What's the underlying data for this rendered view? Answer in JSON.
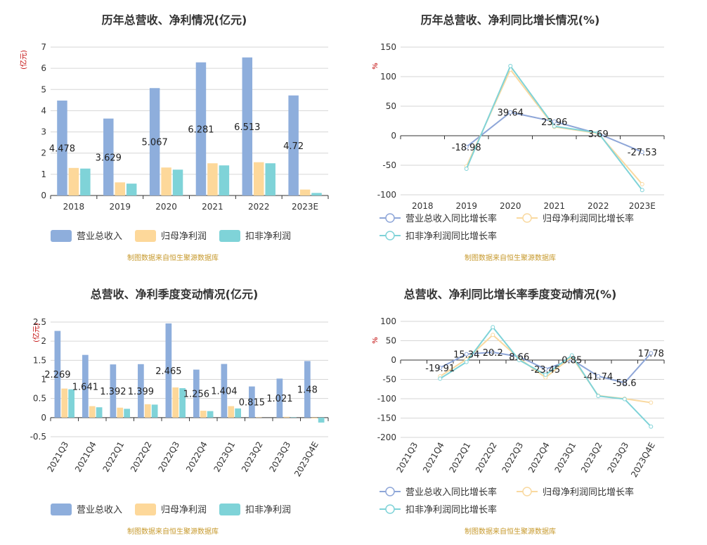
{
  "colors": {
    "revenue": "#8eaedc",
    "parent_profit": "#fdd89a",
    "deducted_profit": "#7fd3d8",
    "revenue_line": "#8ea6d8",
    "parent_line": "#f9d9a0",
    "deducted_line": "#7fd3d8",
    "unit": "#c00000",
    "source": "#c79a2e"
  },
  "source_note": "制图数据来自恒生聚源数据库",
  "chart_data": [
    {
      "type": "bar",
      "title": "历年总营收、净利情况(亿元)",
      "ylabel": "(亿元)",
      "ylim": [
        0,
        7
      ],
      "yticks": [
        "0",
        "1",
        "2",
        "3",
        "4",
        "5",
        "6",
        "7"
      ],
      "grid": true,
      "legend_position": "bottom",
      "categories": [
        "2018",
        "2019",
        "2020",
        "2021",
        "2022",
        "2023E"
      ],
      "series": [
        {
          "name": "营业总收入",
          "values": [
            4.478,
            3.629,
            5.067,
            6.281,
            6.513,
            4.72
          ]
        },
        {
          "name": "归母净利润",
          "values": [
            1.3,
            0.62,
            1.32,
            1.52,
            1.57,
            0.28
          ]
        },
        {
          "name": "扣非净利润",
          "values": [
            1.27,
            0.56,
            1.22,
            1.42,
            1.52,
            0.12
          ]
        }
      ],
      "data_labels": [
        "4.478",
        "3.629",
        "5.067",
        "6.281",
        "6.513",
        "4.72"
      ]
    },
    {
      "type": "line",
      "title": "历年总营收、净利同比增长情况(%)",
      "ylabel": "%",
      "ylim": [
        -100,
        150
      ],
      "yticks": [
        "-100",
        "-50",
        "0",
        "50",
        "100",
        "150"
      ],
      "grid": true,
      "legend_position": "bottom",
      "categories": [
        "2018",
        "2019",
        "2020",
        "2021",
        "2022",
        "2023E"
      ],
      "series": [
        {
          "name": "营业总收入同比增长率",
          "values": [
            null,
            -18.98,
            39.64,
            23.96,
            3.69,
            -27.53
          ]
        },
        {
          "name": "归母净利润同比增长率",
          "values": [
            null,
            -52,
            112,
            15,
            4,
            -82
          ]
        },
        {
          "name": "扣非净利润同比增长率",
          "values": [
            null,
            -56,
            118,
            16,
            5,
            -92
          ]
        }
      ],
      "data_labels": [
        "",
        "-18.98",
        "39.64",
        "23.96",
        "3.69",
        "-27.53"
      ]
    },
    {
      "type": "bar",
      "title": "总营收、净利季度变动情况(亿元)",
      "ylabel": "(亿元)",
      "ylim": [
        -0.5,
        2.5
      ],
      "yticks": [
        "-0.5",
        "0",
        "0.5",
        "1",
        "1.5",
        "2",
        "2.5"
      ],
      "grid": true,
      "legend_position": "bottom",
      "categories": [
        "2021Q3",
        "2021Q4",
        "2022Q1",
        "2022Q2",
        "2022Q3",
        "2022Q4",
        "2023Q1",
        "2023Q2",
        "2023Q3",
        "2023Q4E"
      ],
      "series": [
        {
          "name": "营业总收入",
          "values": [
            2.269,
            1.641,
            1.392,
            1.399,
            2.465,
            1.256,
            1.404,
            0.815,
            1.021,
            1.48
          ]
        },
        {
          "name": "归母净利润",
          "values": [
            0.76,
            0.3,
            0.26,
            0.35,
            0.79,
            0.18,
            0.3,
            0.01,
            0.02,
            -0.02
          ]
        },
        {
          "name": "扣非净利润",
          "values": [
            0.74,
            0.27,
            0.23,
            0.34,
            0.77,
            0.17,
            0.24,
            0.0,
            0.01,
            -0.13
          ]
        }
      ],
      "data_labels": [
        "2.269",
        "1.641",
        "1.392",
        "1.399",
        "2.465",
        "1.256",
        "1.404",
        "0.815",
        "1.021",
        "1.48"
      ]
    },
    {
      "type": "line",
      "title": "总营收、净利同比增长率季度变动情况(%)",
      "ylabel": "%",
      "ylim": [
        -200,
        100
      ],
      "yticks": [
        "-200",
        "-150",
        "-100",
        "-50",
        "0",
        "50",
        "100"
      ],
      "grid": true,
      "legend_position": "bottom",
      "categories": [
        "2021Q3",
        "2021Q4",
        "2022Q1",
        "2022Q2",
        "2022Q3",
        "2022Q4",
        "2023Q1",
        "2023Q2",
        "2023Q3",
        "2023Q4E"
      ],
      "series": [
        {
          "name": "营业总收入同比增长率",
          "values": [
            null,
            -19.91,
            15.34,
            20.2,
            8.66,
            -23.45,
            0.85,
            -41.74,
            -58.6,
            17.78
          ]
        },
        {
          "name": "归母净利润同比增长率",
          "values": [
            null,
            -42,
            2,
            65,
            4,
            -45,
            8,
            -92,
            -100,
            -110
          ]
        },
        {
          "name": "扣非净利润同比增长率",
          "values": [
            null,
            -48,
            -5,
            85,
            0,
            -38,
            12,
            -93,
            -101,
            -172
          ]
        }
      ],
      "data_labels": [
        "",
        "-19.91",
        "15.34",
        "20.2",
        "8.66",
        "-23.45",
        "0.85",
        "-41.74",
        "-58.6",
        "17.78"
      ]
    }
  ]
}
